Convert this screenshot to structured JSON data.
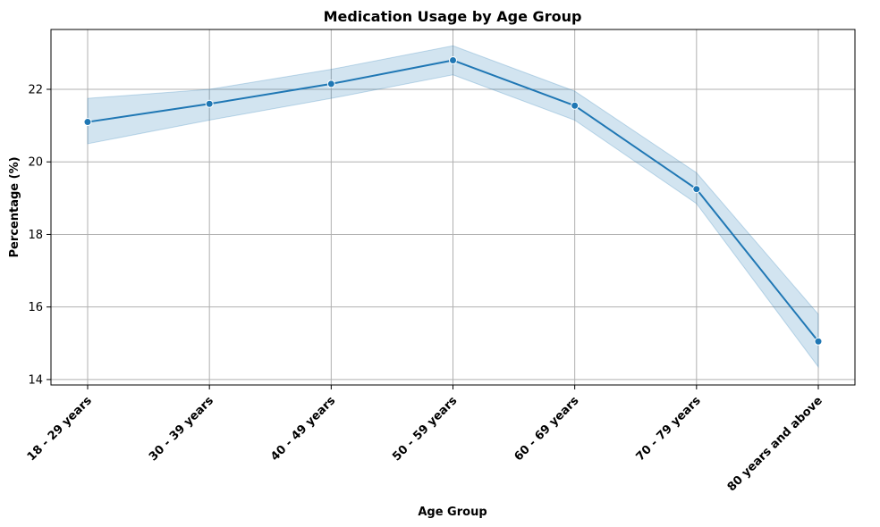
{
  "chart_data": {
    "type": "line",
    "title": "Medication Usage by Age Group",
    "xlabel": "Age Group",
    "ylabel": "Percentage (%)",
    "categories": [
      "18 - 29 years",
      "30 - 39 years",
      "40 - 49 years",
      "50 - 59 years",
      "60 - 69 years",
      "70 - 79 years",
      "80 years and above"
    ],
    "series": [
      {
        "values": [
          21.1,
          21.6,
          22.15,
          22.8,
          21.55,
          19.25,
          15.05
        ],
        "ci_lower": [
          20.5,
          21.15,
          21.75,
          22.4,
          21.15,
          18.85,
          14.35
        ],
        "ci_upper": [
          21.75,
          22.0,
          22.55,
          23.2,
          21.95,
          19.7,
          15.8
        ]
      }
    ],
    "ylim": [
      13.85,
      23.65
    ],
    "yticks": [
      14,
      16,
      18,
      20,
      22
    ],
    "grid": true,
    "colors": {
      "line": "#1f77b4",
      "band": "#1f77b4",
      "grid": "#b0b0b0"
    }
  }
}
